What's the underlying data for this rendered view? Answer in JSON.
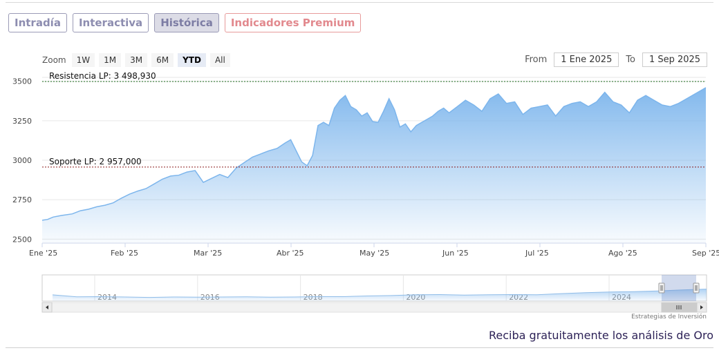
{
  "tabs": [
    {
      "label": "Intradía",
      "active": false
    },
    {
      "label": "Interactiva",
      "active": false
    },
    {
      "label": "Histórica",
      "active": true
    },
    {
      "label": "Indicadores Premium",
      "active": false
    }
  ],
  "zoom": {
    "label": "Zoom",
    "buttons": [
      "1W",
      "1M",
      "3M",
      "6M",
      "YTD",
      "All"
    ],
    "selected": "YTD"
  },
  "range": {
    "from_label": "From",
    "from_value": "1 Ene 2025",
    "to_label": "To",
    "to_value": "1 Sep 2025"
  },
  "credit": "Estrategias de Inversión",
  "cta": "Reciba gratuitamente los análisis de Oro",
  "colors": {
    "line": "#7cb5ec",
    "resistance": "#1a6b1a",
    "support": "#8b1a1a",
    "accent": "#8d8db0",
    "premium": "#e2898e"
  },
  "chart_data": {
    "type": "area",
    "x_tick_labels": [
      "Ene '25",
      "Feb '25",
      "Mar '25",
      "Abr '25",
      "May '25",
      "Jun '25",
      "Jul '25",
      "Ago '25",
      "Sep '25"
    ],
    "y_tick_labels": [
      "2500",
      "2750",
      "3000",
      "3250",
      "3500"
    ],
    "y_ticks": [
      2500,
      2750,
      3000,
      3250,
      3500
    ],
    "ylim": [
      2475,
      3525
    ],
    "xlim": [
      "2025-01-01",
      "2025-09-01"
    ],
    "grid": true,
    "annotations": [
      {
        "label": "Resistencia LP: 3 498,930",
        "value": 3498.93
      },
      {
        "label": "Soporte LP: 2 957,000",
        "value": 2957
      }
    ],
    "series": [
      {
        "x": [
          "2025-01-01",
          "2025-01-03",
          "2025-01-05",
          "2025-01-08",
          "2025-01-12",
          "2025-01-15",
          "2025-01-18",
          "2025-01-21",
          "2025-01-24",
          "2025-01-27",
          "2025-01-30",
          "2025-02-02",
          "2025-02-05",
          "2025-02-08",
          "2025-02-11",
          "2025-02-14",
          "2025-02-17",
          "2025-02-20",
          "2025-02-23",
          "2025-02-26",
          "2025-03-01",
          "2025-03-04",
          "2025-03-07",
          "2025-03-10",
          "2025-03-13",
          "2025-03-16",
          "2025-03-19",
          "2025-03-22",
          "2025-03-25",
          "2025-03-28",
          "2025-03-31",
          "2025-04-02",
          "2025-04-04",
          "2025-04-06",
          "2025-04-08",
          "2025-04-10",
          "2025-04-12",
          "2025-04-14",
          "2025-04-16",
          "2025-04-18",
          "2025-04-20",
          "2025-04-22",
          "2025-04-24",
          "2025-04-26",
          "2025-04-28",
          "2025-04-30",
          "2025-05-02",
          "2025-05-04",
          "2025-05-06",
          "2025-05-08",
          "2025-05-10",
          "2025-05-12",
          "2025-05-14",
          "2025-05-16",
          "2025-05-18",
          "2025-05-20",
          "2025-05-22",
          "2025-05-24",
          "2025-05-26",
          "2025-05-28",
          "2025-05-30",
          "2025-06-02",
          "2025-06-05",
          "2025-06-08",
          "2025-06-11",
          "2025-06-14",
          "2025-06-17",
          "2025-06-20",
          "2025-06-23",
          "2025-06-26",
          "2025-06-29",
          "2025-07-02",
          "2025-07-05",
          "2025-07-08",
          "2025-07-11",
          "2025-07-14",
          "2025-07-17",
          "2025-07-20",
          "2025-07-23",
          "2025-07-26",
          "2025-07-29",
          "2025-08-01",
          "2025-08-04",
          "2025-08-07",
          "2025-08-10",
          "2025-08-13",
          "2025-08-16",
          "2025-08-19",
          "2025-08-22",
          "2025-08-25",
          "2025-08-28",
          "2025-09-01"
        ],
        "values": [
          2620,
          2625,
          2640,
          2650,
          2660,
          2680,
          2690,
          2705,
          2715,
          2730,
          2760,
          2785,
          2805,
          2820,
          2850,
          2880,
          2900,
          2905,
          2925,
          2935,
          2860,
          2885,
          2910,
          2890,
          2950,
          2985,
          3020,
          3040,
          3060,
          3075,
          3110,
          3130,
          3060,
          2990,
          2965,
          3030,
          3220,
          3240,
          3220,
          3330,
          3380,
          3410,
          3340,
          3320,
          3280,
          3300,
          3245,
          3240,
          3310,
          3390,
          3320,
          3210,
          3230,
          3180,
          3220,
          3240,
          3260,
          3280,
          3310,
          3330,
          3300,
          3340,
          3380,
          3350,
          3310,
          3390,
          3420,
          3360,
          3370,
          3290,
          3330,
          3340,
          3350,
          3280,
          3340,
          3360,
          3370,
          3340,
          3370,
          3430,
          3370,
          3350,
          3300,
          3380,
          3410,
          3380,
          3350,
          3340,
          3360,
          3390,
          3420,
          3460
        ]
      }
    ]
  },
  "navigator": {
    "year_labels": [
      "2014",
      "2016",
      "2018",
      "2020",
      "2022",
      "2024"
    ],
    "values": [
      2635,
      2530,
      2540,
      2520,
      2500,
      2520,
      2510,
      2520,
      2530,
      2515,
      2520,
      2545,
      2540,
      2575,
      2600,
      2640,
      2650,
      2625,
      2640,
      2650,
      2640,
      2700,
      2750,
      2790,
      2810,
      2840,
      2900,
      2940
    ]
  }
}
